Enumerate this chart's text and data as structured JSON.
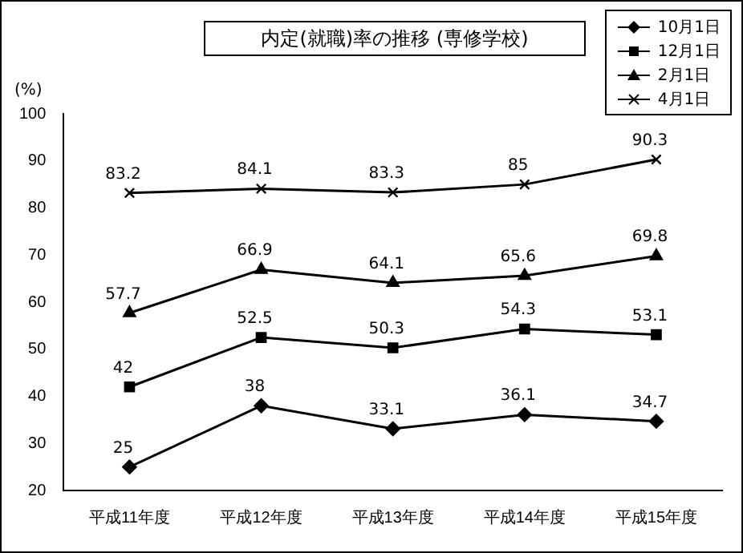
{
  "chart_data": {
    "type": "line",
    "title": "内定(就職)率の推移 (専修学校)",
    "ylabel": "(%)",
    "categories": [
      "平成11年度",
      "平成12年度",
      "平成13年度",
      "平成14年度",
      "平成15年度"
    ],
    "ylim": [
      20,
      100
    ],
    "yticks": [
      20,
      30,
      40,
      50,
      60,
      70,
      80,
      90,
      100
    ],
    "grid": false,
    "legend": "top right",
    "data_labels": true,
    "line_style": "solid",
    "series": [
      {
        "name": "10月1日",
        "color": "#000000",
        "marker": "diamond",
        "values": [
          25,
          38,
          33.1,
          36.1,
          34.7
        ]
      },
      {
        "name": "12月1日",
        "color": "#000000",
        "marker": "square",
        "values": [
          42,
          52.5,
          50.3,
          54.3,
          53.1
        ]
      },
      {
        "name": "2月1日",
        "color": "#000000",
        "marker": "triangle",
        "values": [
          57.7,
          66.9,
          64.1,
          65.6,
          69.8
        ]
      },
      {
        "name": "4月1日",
        "color": "#000000",
        "marker": "cross",
        "values": [
          83.2,
          84.1,
          83.3,
          85,
          90.3
        ]
      }
    ]
  }
}
